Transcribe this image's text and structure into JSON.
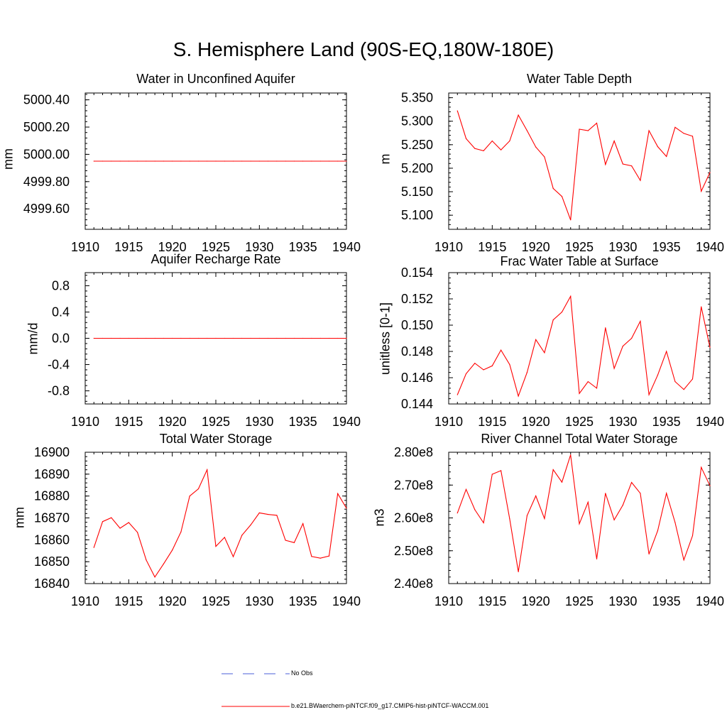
{
  "page": {
    "title": "S. Hemisphere Land (90S-EQ,180W-180E)"
  },
  "legend": {
    "entries": [
      {
        "label": "No Obs",
        "color": "#4b5fd8",
        "style": "dashed"
      },
      {
        "label": "b.e21.BWaerchem-piNTCF.f09_g17.CMIP6-hist-piNTCF-WACCM.001",
        "color": "#ff0000",
        "style": "solid"
      }
    ]
  },
  "chart_data": [
    {
      "type": "line",
      "title": "Water in Unconfined Aquifer",
      "ylabel": "mm",
      "xlim": [
        1910,
        1940
      ],
      "ylim": [
        4999.45,
        5000.45
      ],
      "xticks": [
        1910,
        1915,
        1920,
        1925,
        1930,
        1935,
        1940
      ],
      "yticks": [
        4999.6,
        4999.8,
        5000.0,
        5000.2,
        5000.4
      ],
      "ytick_labels": [
        "4999.60",
        "4999.80",
        "5000.00",
        "5000.20",
        "5000.40"
      ],
      "series": [
        {
          "color": "#ff0000",
          "x": [
            1911,
            1912,
            1913,
            1914,
            1915,
            1916,
            1917,
            1918,
            1919,
            1920,
            1921,
            1922,
            1923,
            1924,
            1925,
            1926,
            1927,
            1928,
            1929,
            1930,
            1931,
            1932,
            1933,
            1934,
            1935,
            1936,
            1937,
            1938,
            1939,
            1940
          ],
          "y": [
            4999.95,
            4999.95,
            4999.95,
            4999.95,
            4999.95,
            4999.95,
            4999.95,
            4999.95,
            4999.95,
            4999.95,
            4999.95,
            4999.95,
            4999.95,
            4999.95,
            4999.95,
            4999.95,
            4999.95,
            4999.95,
            4999.95,
            4999.95,
            4999.95,
            4999.95,
            4999.95,
            4999.95,
            4999.95,
            4999.95,
            4999.95,
            4999.95,
            4999.95,
            4999.95
          ]
        }
      ]
    },
    {
      "type": "line",
      "title": "Water Table Depth",
      "ylabel": "m",
      "xlim": [
        1910,
        1940
      ],
      "ylim": [
        5.07,
        5.36
      ],
      "xticks": [
        1910,
        1915,
        1920,
        1925,
        1930,
        1935,
        1940
      ],
      "yticks": [
        5.1,
        5.15,
        5.2,
        5.25,
        5.3,
        5.35
      ],
      "ytick_labels": [
        "5.100",
        "5.150",
        "5.200",
        "5.250",
        "5.300",
        "5.350"
      ],
      "series": [
        {
          "color": "#ff0000",
          "x": [
            1911,
            1912,
            1913,
            1914,
            1915,
            1916,
            1917,
            1918,
            1919,
            1920,
            1921,
            1922,
            1923,
            1924,
            1925,
            1926,
            1927,
            1928,
            1929,
            1930,
            1931,
            1932,
            1933,
            1934,
            1935,
            1936,
            1937,
            1938,
            1939,
            1940
          ],
          "y": [
            5.322,
            5.263,
            5.242,
            5.237,
            5.258,
            5.239,
            5.258,
            5.313,
            5.28,
            5.245,
            5.224,
            5.157,
            5.14,
            5.09,
            5.283,
            5.28,
            5.296,
            5.208,
            5.258,
            5.209,
            5.205,
            5.174,
            5.28,
            5.246,
            5.225,
            5.287,
            5.274,
            5.268,
            5.151,
            5.191
          ]
        }
      ]
    },
    {
      "type": "line",
      "title": "Aquifer Recharge Rate",
      "ylabel": "mm/d",
      "xlim": [
        1910,
        1940
      ],
      "ylim": [
        -1.0,
        1.0
      ],
      "xticks": [
        1910,
        1915,
        1920,
        1925,
        1930,
        1935,
        1940
      ],
      "yticks": [
        -0.8,
        -0.4,
        0.0,
        0.4,
        0.8
      ],
      "ytick_labels": [
        "-0.8",
        "-0.4",
        "0.0",
        "0.4",
        "0.8"
      ],
      "series": [
        {
          "color": "#ff0000",
          "x": [
            1911,
            1912,
            1913,
            1914,
            1915,
            1916,
            1917,
            1918,
            1919,
            1920,
            1921,
            1922,
            1923,
            1924,
            1925,
            1926,
            1927,
            1928,
            1929,
            1930,
            1931,
            1932,
            1933,
            1934,
            1935,
            1936,
            1937,
            1938,
            1939,
            1940
          ],
          "y": [
            0,
            0,
            0,
            0,
            0,
            0,
            0,
            0,
            0,
            0,
            0,
            0,
            0,
            0,
            0,
            0,
            0,
            0,
            0,
            0,
            0,
            0,
            0,
            0,
            0,
            0,
            0,
            0,
            0,
            0
          ]
        }
      ]
    },
    {
      "type": "line",
      "title": "Frac Water Table at Surface",
      "ylabel": "unitless [0-1]",
      "xlim": [
        1910,
        1940
      ],
      "ylim": [
        0.144,
        0.154
      ],
      "xticks": [
        1910,
        1915,
        1920,
        1925,
        1930,
        1935,
        1940
      ],
      "yticks": [
        0.144,
        0.146,
        0.148,
        0.15,
        0.152,
        0.154
      ],
      "ytick_labels": [
        "0.144",
        "0.146",
        "0.148",
        "0.150",
        "0.152",
        "0.154"
      ],
      "series": [
        {
          "color": "#ff0000",
          "x": [
            1911,
            1912,
            1913,
            1914,
            1915,
            1916,
            1917,
            1918,
            1919,
            1920,
            1921,
            1922,
            1923,
            1924,
            1925,
            1926,
            1927,
            1928,
            1929,
            1930,
            1931,
            1932,
            1933,
            1934,
            1935,
            1936,
            1937,
            1938,
            1939,
            1940
          ],
          "y": [
            0.1447,
            0.1463,
            0.1471,
            0.1466,
            0.1469,
            0.1481,
            0.147,
            0.1446,
            0.1464,
            0.1489,
            0.1479,
            0.1504,
            0.151,
            0.1522,
            0.1448,
            0.1457,
            0.1452,
            0.1498,
            0.1467,
            0.1484,
            0.149,
            0.1503,
            0.1447,
            0.1462,
            0.148,
            0.1457,
            0.1451,
            0.1459,
            0.1514,
            0.1483
          ]
        }
      ]
    },
    {
      "type": "line",
      "title": "Total Water Storage",
      "ylabel": "mm",
      "xlim": [
        1910,
        1940
      ],
      "ylim": [
        16840,
        16900
      ],
      "xticks": [
        1910,
        1915,
        1920,
        1925,
        1930,
        1935,
        1940
      ],
      "yticks": [
        16840,
        16850,
        16860,
        16870,
        16880,
        16890,
        16900
      ],
      "ytick_labels": [
        "16840",
        "16850",
        "16860",
        "16870",
        "16880",
        "16890",
        "16900"
      ],
      "series": [
        {
          "color": "#ff0000",
          "x": [
            1911,
            1912,
            1913,
            1914,
            1915,
            1916,
            1917,
            1918,
            1919,
            1920,
            1921,
            1922,
            1923,
            1924,
            1925,
            1926,
            1927,
            1928,
            1929,
            1930,
            1931,
            1932,
            1933,
            1934,
            1935,
            1936,
            1937,
            1938,
            1939,
            1940
          ],
          "y": [
            16856.5,
            16868.3,
            16870.1,
            16865.3,
            16867.9,
            16863.4,
            16850.8,
            16843.0,
            16849.0,
            16855.3,
            16863.6,
            16880.0,
            16883.3,
            16892.0,
            16857.0,
            16861.1,
            16852.3,
            16862.1,
            16866.8,
            16872.3,
            16871.6,
            16871.2,
            16859.8,
            16858.7,
            16867.4,
            16852.4,
            16851.6,
            16852.6,
            16881.1,
            16874.4
          ]
        }
      ]
    },
    {
      "type": "line",
      "title": "River Channel Total Water Storage",
      "ylabel": "m3",
      "xlim": [
        1910,
        1940
      ],
      "ylim": [
        240000000,
        280000000
      ],
      "xticks": [
        1910,
        1915,
        1920,
        1925,
        1930,
        1935,
        1940
      ],
      "yticks": [
        240000000,
        250000000,
        260000000,
        270000000,
        280000000
      ],
      "ytick_labels": [
        "2.40e8",
        "2.50e8",
        "2.60e8",
        "2.70e8",
        "2.80e8"
      ],
      "series": [
        {
          "color": "#ff0000",
          "x": [
            1911,
            1912,
            1913,
            1914,
            1915,
            1916,
            1917,
            1918,
            1919,
            1920,
            1921,
            1922,
            1923,
            1924,
            1925,
            1926,
            1927,
            1928,
            1929,
            1930,
            1931,
            1932,
            1933,
            1934,
            1935,
            1936,
            1937,
            1938,
            1939,
            1940
          ],
          "y": [
            261500000,
            268700000,
            262500000,
            258500000,
            273300000,
            274400000,
            259700000,
            243600000,
            260700000,
            266700000,
            259800000,
            274700000,
            270900000,
            279200000,
            258200000,
            264800000,
            247500000,
            267500000,
            259400000,
            263900000,
            270800000,
            267500000,
            249000000,
            256100000,
            267500000,
            258600000,
            247200000,
            254600000,
            275400000,
            269800000
          ]
        }
      ]
    }
  ]
}
